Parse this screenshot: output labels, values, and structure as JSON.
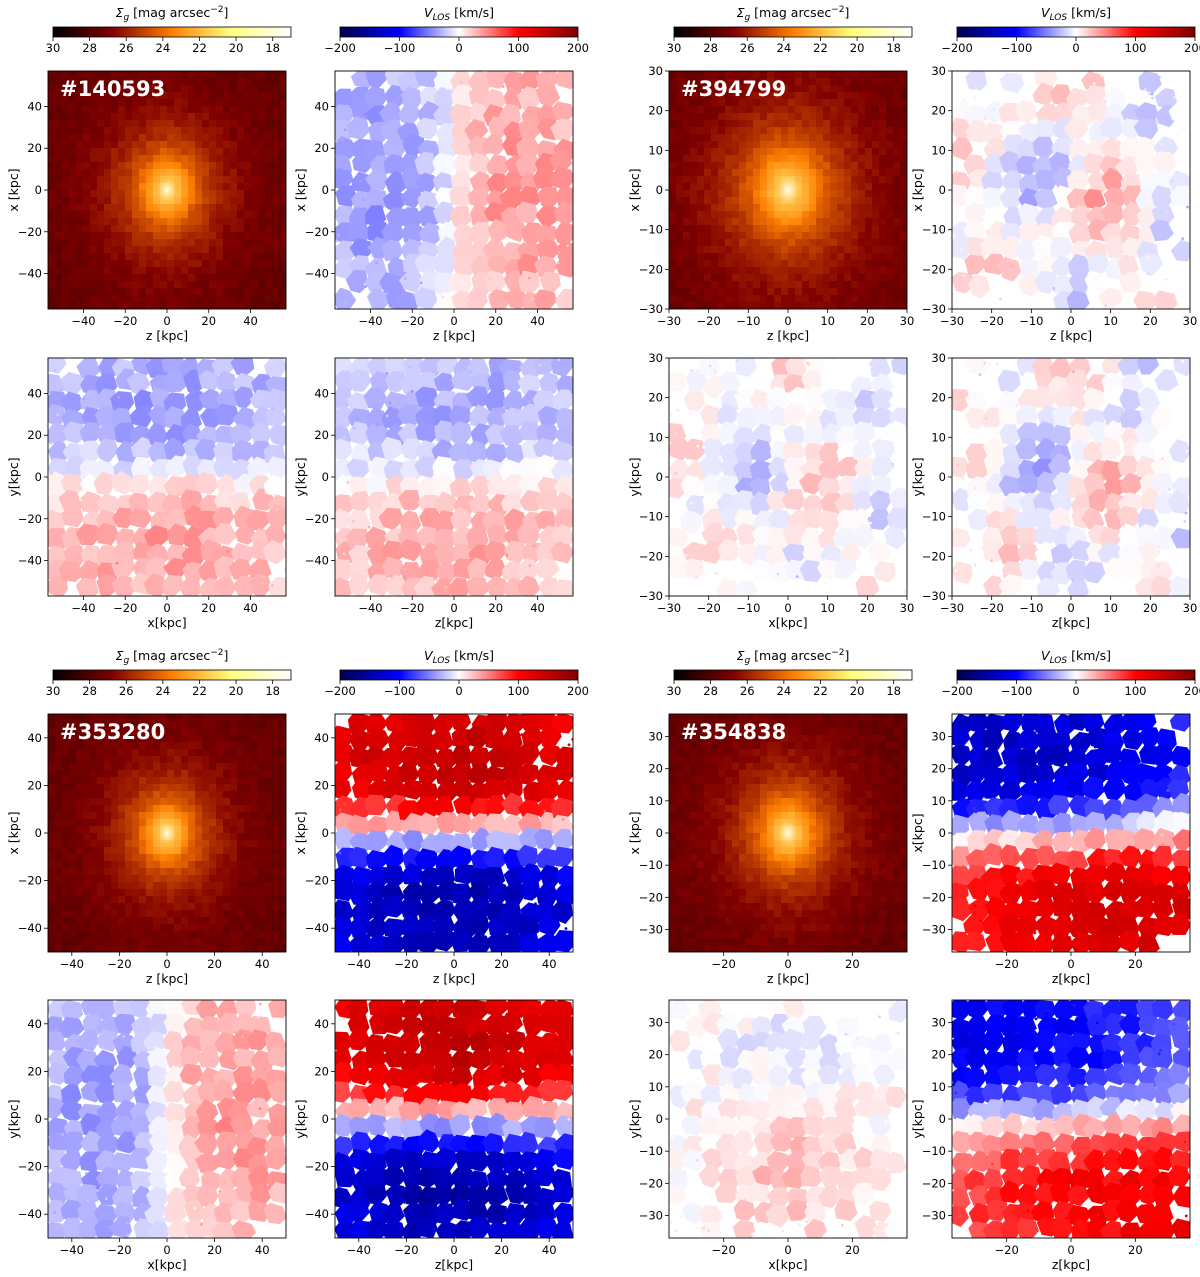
{
  "figure": {
    "colorbars": {
      "brightness": {
        "label": "Σ",
        "sub": "g",
        "unit": " [mag arcsec",
        "exp": "−2",
        "close": "]",
        "ticks": [
          "30",
          "28",
          "26",
          "24",
          "22",
          "20",
          "18"
        ],
        "range": [
          30,
          17
        ]
      },
      "velocity": {
        "label": "V",
        "sub": "LOS",
        "unit": " [km/s]",
        "ticks": [
          "−200",
          "−100",
          "0",
          "100",
          "200"
        ],
        "range": [
          -200,
          200
        ]
      }
    }
  },
  "chart_data": [
    {
      "id": "#140593",
      "type": "heatmap",
      "axis_lim": 57,
      "ticks": [
        -40,
        -20,
        0,
        20,
        40
      ],
      "panels": [
        {
          "quantity": "surface brightness",
          "colormap": "afmhot",
          "xlabel": "z [kpc]",
          "ylabel": "x [kpc]",
          "pattern": "bulge",
          "amp": 0,
          "sigma_kpc": 12
        },
        {
          "quantity": "line-of-sight velocity",
          "colormap": "seismic",
          "xlabel": "z [kpc]",
          "ylabel": "x [kpc]",
          "pattern": "rot_x",
          "amp": 60,
          "sigma_kpc": 0
        },
        {
          "quantity": "line-of-sight velocity",
          "colormap": "seismic",
          "xlabel": "x[kpc]",
          "ylabel": "y[kpc]",
          "pattern": "rot_y",
          "amp": 55,
          "sigma_kpc": 0
        },
        {
          "quantity": "line-of-sight velocity",
          "colormap": "seismic",
          "xlabel": "z[kpc]",
          "ylabel": "y[kpc]",
          "pattern": "rot_y",
          "amp": 50,
          "sigma_kpc": 0
        }
      ]
    },
    {
      "id": "#394799",
      "type": "heatmap",
      "axis_lim": 30,
      "ticks": [
        -30,
        -20,
        -10,
        0,
        10,
        20,
        30
      ],
      "panels": [
        {
          "quantity": "surface brightness",
          "colormap": "afmhot",
          "xlabel": "z [kpc]",
          "ylabel": "x [kpc]",
          "pattern": "bulge",
          "amp": 0,
          "sigma_kpc": 8
        },
        {
          "quantity": "line-of-sight velocity",
          "colormap": "seismic",
          "xlabel": "z [kpc]",
          "ylabel": "x [kpc]",
          "pattern": "noisy",
          "amp": 45,
          "sigma_kpc": 0
        },
        {
          "quantity": "line-of-sight velocity",
          "colormap": "seismic",
          "xlabel": "x[kpc]",
          "ylabel": "y[kpc]",
          "pattern": "noisy",
          "amp": 35,
          "sigma_kpc": 0
        },
        {
          "quantity": "line-of-sight velocity",
          "colormap": "seismic",
          "xlabel": "z[kpc]",
          "ylabel": "y[kpc]",
          "pattern": "noisy",
          "amp": 45,
          "sigma_kpc": 0
        }
      ]
    },
    {
      "id": "#353280",
      "type": "heatmap",
      "axis_lim": 50,
      "ticks": [
        -40,
        -20,
        0,
        20,
        40
      ],
      "panels": [
        {
          "quantity": "surface brightness",
          "colormap": "afmhot",
          "xlabel": "z [kpc]",
          "ylabel": "x [kpc]",
          "pattern": "bulge",
          "amp": 0,
          "sigma_kpc": 10
        },
        {
          "quantity": "line-of-sight velocity",
          "colormap": "seismic",
          "xlabel": "z [kpc]",
          "ylabel": "x [kpc]",
          "pattern": "rot_y_strong",
          "amp": 190,
          "sigma_kpc": 0
        },
        {
          "quantity": "line-of-sight velocity",
          "colormap": "seismic",
          "xlabel": "x[kpc]",
          "ylabel": "y[kpc]",
          "pattern": "rot_x",
          "amp": 60,
          "sigma_kpc": 0
        },
        {
          "quantity": "line-of-sight velocity",
          "colormap": "seismic",
          "xlabel": "z[kpc]",
          "ylabel": "y[kpc]",
          "pattern": "rot_y_strong",
          "amp": 190,
          "sigma_kpc": 0
        }
      ]
    },
    {
      "id": "#354838",
      "type": "heatmap",
      "axis_lim": 37,
      "ticks": [
        -30,
        -20,
        -10,
        0,
        10,
        20,
        30
      ],
      "xticks": [
        -20,
        0,
        20
      ],
      "panels": [
        {
          "quantity": "surface brightness",
          "colormap": "afmhot",
          "xlabel": "z [kpc]",
          "ylabel": "x [kpc]",
          "pattern": "bulge",
          "amp": 0,
          "sigma_kpc": 8
        },
        {
          "quantity": "line-of-sight velocity",
          "colormap": "seismic",
          "xlabel": "z[kpc]",
          "ylabel": "x[kpc]",
          "pattern": "rot_y_rev",
          "amp": 150,
          "sigma_kpc": 0
        },
        {
          "quantity": "line-of-sight velocity",
          "colormap": "seismic",
          "xlabel": "x[kpc]",
          "ylabel": "y[kpc]",
          "pattern": "noisy_pos",
          "amp": 40,
          "sigma_kpc": 0
        },
        {
          "quantity": "line-of-sight velocity",
          "colormap": "seismic",
          "xlabel": "z[kpc]",
          "ylabel": "y[kpc]",
          "pattern": "rot_y_rev",
          "amp": 120,
          "sigma_kpc": 0
        }
      ]
    }
  ]
}
